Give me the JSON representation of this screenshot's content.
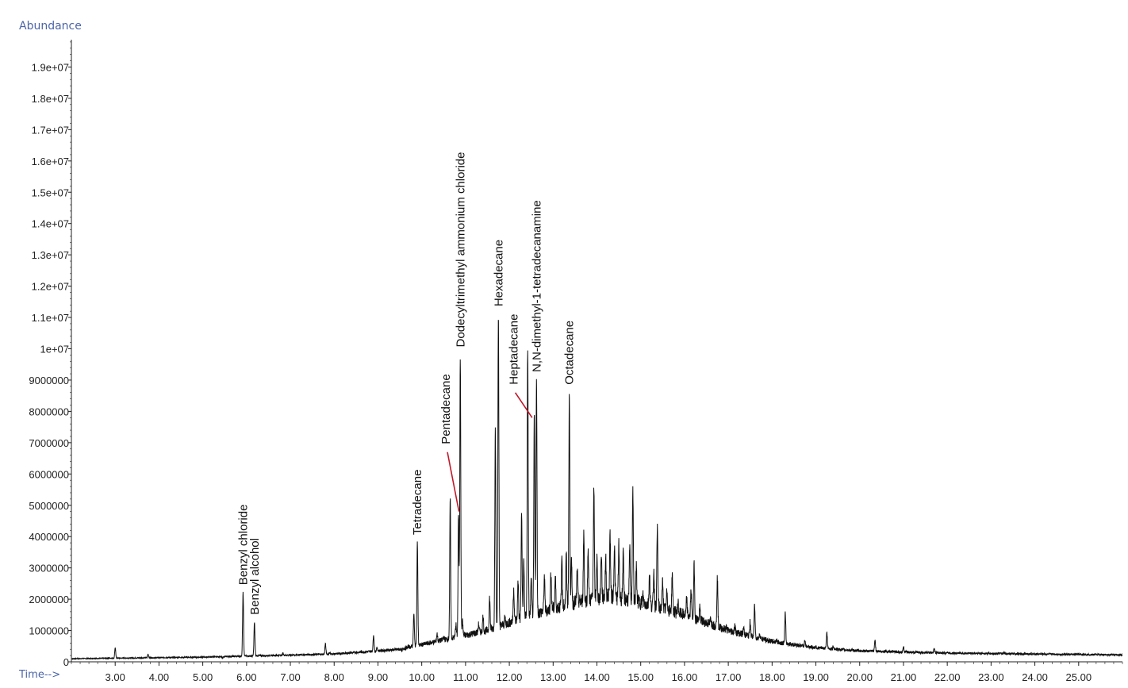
{
  "chart_data": {
    "type": "line",
    "ylabel": "Abundance",
    "xlabel": "Time-->",
    "xlim": [
      2.0,
      26.0
    ],
    "ylim": [
      0,
      20000000
    ],
    "x_ticks": [
      "3.00",
      "4.00",
      "5.00",
      "6.00",
      "7.00",
      "8.00",
      "9.00",
      "10.00",
      "11.00",
      "12.00",
      "13.00",
      "14.00",
      "15.00",
      "16.00",
      "17.00",
      "18.00",
      "19.00",
      "20.00",
      "21.00",
      "22.00",
      "23.00",
      "24.00",
      "25.00"
    ],
    "y_ticks": [
      {
        "value": 0,
        "label": "0"
      },
      {
        "value": 1000000,
        "label": "1000000"
      },
      {
        "value": 2000000,
        "label": "2000000"
      },
      {
        "value": 3000000,
        "label": "3000000"
      },
      {
        "value": 4000000,
        "label": "4000000"
      },
      {
        "value": 5000000,
        "label": "5000000"
      },
      {
        "value": 6000000,
        "label": "6000000"
      },
      {
        "value": 7000000,
        "label": "7000000"
      },
      {
        "value": 8000000,
        "label": "8000000"
      },
      {
        "value": 9000000,
        "label": "9000000"
      },
      {
        "value": 10000000,
        "label": "1e+07"
      },
      {
        "value": 11000000,
        "label": "1.1e+07"
      },
      {
        "value": 12000000,
        "label": "1.2e+07"
      },
      {
        "value": 13000000,
        "label": "1.3e+07"
      },
      {
        "value": 14000000,
        "label": "1.4e+07"
      },
      {
        "value": 15000000,
        "label": "1.5e+07"
      },
      {
        "value": 16000000,
        "label": "1.6e+07"
      },
      {
        "value": 17000000,
        "label": "1.7e+07"
      },
      {
        "value": 18000000,
        "label": "1.8e+07"
      },
      {
        "value": 19000000,
        "label": "1.9e+07"
      }
    ],
    "series": [
      {
        "baseline": [
          [
            2.0,
            100000
          ],
          [
            5.0,
            150000
          ],
          [
            8.0,
            250000
          ],
          [
            9.5,
            400000
          ],
          [
            10.5,
            700000
          ],
          [
            11.5,
            1000000
          ],
          [
            12.5,
            1500000
          ],
          [
            13.5,
            1900000
          ],
          [
            14.3,
            2100000
          ],
          [
            15.0,
            1900000
          ],
          [
            16.0,
            1500000
          ],
          [
            17.0,
            1000000
          ],
          [
            18.0,
            650000
          ],
          [
            19.0,
            450000
          ],
          [
            20.0,
            350000
          ],
          [
            22.0,
            280000
          ],
          [
            24.0,
            250000
          ],
          [
            26.0,
            220000
          ]
        ],
        "peaks": [
          [
            3.0,
            450000
          ],
          [
            3.75,
            250000
          ],
          [
            5.45,
            120000
          ],
          [
            5.92,
            2250000
          ],
          [
            6.18,
            1250000
          ],
          [
            6.83,
            280000
          ],
          [
            7.8,
            580000
          ],
          [
            7.9,
            300000
          ],
          [
            8.9,
            850000
          ],
          [
            8.98,
            450000
          ],
          [
            9.55,
            350000
          ],
          [
            9.7,
            500000
          ],
          [
            9.82,
            1550000
          ],
          [
            9.9,
            3800000
          ],
          [
            10.35,
            900000
          ],
          [
            10.5,
            800000
          ],
          [
            10.65,
            5200000
          ],
          [
            10.78,
            1200000
          ],
          [
            10.84,
            4700000
          ],
          [
            10.88,
            9750000
          ],
          [
            10.93,
            1300000
          ],
          [
            11.3,
            1200000
          ],
          [
            11.4,
            1450000
          ],
          [
            11.55,
            2050000
          ],
          [
            11.68,
            7600000
          ],
          [
            11.75,
            11100000
          ],
          [
            11.9,
            1400000
          ],
          [
            12.1,
            2350000
          ],
          [
            12.2,
            2600000
          ],
          [
            12.28,
            4700000
          ],
          [
            12.33,
            3200000
          ],
          [
            12.42,
            9950000
          ],
          [
            12.5,
            2600000
          ],
          [
            12.57,
            7900000
          ],
          [
            12.62,
            9000000
          ],
          [
            12.8,
            2700000
          ],
          [
            12.95,
            2900000
          ],
          [
            13.05,
            2700000
          ],
          [
            13.2,
            3350000
          ],
          [
            13.3,
            3400000
          ],
          [
            13.37,
            8600000
          ],
          [
            13.42,
            3200000
          ],
          [
            13.55,
            2900000
          ],
          [
            13.7,
            4100000
          ],
          [
            13.8,
            3600000
          ],
          [
            13.93,
            5600000
          ],
          [
            14.0,
            3300000
          ],
          [
            14.1,
            3500000
          ],
          [
            14.2,
            3300000
          ],
          [
            14.3,
            4100000
          ],
          [
            14.4,
            3700000
          ],
          [
            14.5,
            3700000
          ],
          [
            14.6,
            3400000
          ],
          [
            14.75,
            3600000
          ],
          [
            14.82,
            5500000
          ],
          [
            14.9,
            3000000
          ],
          [
            15.05,
            2100000
          ],
          [
            15.2,
            2800000
          ],
          [
            15.3,
            2900000
          ],
          [
            15.38,
            4300000
          ],
          [
            15.5,
            2600000
          ],
          [
            15.6,
            2300000
          ],
          [
            15.72,
            2800000
          ],
          [
            15.85,
            1900000
          ],
          [
            16.05,
            2000000
          ],
          [
            16.15,
            2300000
          ],
          [
            16.22,
            3100000
          ],
          [
            16.35,
            1700000
          ],
          [
            16.6,
            1400000
          ],
          [
            16.75,
            2700000
          ],
          [
            16.95,
            1100000
          ],
          [
            17.15,
            1150000
          ],
          [
            17.35,
            1100000
          ],
          [
            17.5,
            1300000
          ],
          [
            17.6,
            1800000
          ],
          [
            17.72,
            900000
          ],
          [
            18.1,
            700000
          ],
          [
            18.3,
            1550000
          ],
          [
            18.75,
            700000
          ],
          [
            19.0,
            500000
          ],
          [
            19.25,
            950000
          ],
          [
            19.4,
            500000
          ],
          [
            20.05,
            350000
          ],
          [
            20.35,
            700000
          ],
          [
            20.6,
            350000
          ],
          [
            21.0,
            480000
          ],
          [
            21.3,
            300000
          ],
          [
            21.7,
            420000
          ],
          [
            22.0,
            320000
          ],
          [
            23.3,
            300000
          ],
          [
            24.2,
            250000
          ],
          [
            25.4,
            240000
          ]
        ]
      }
    ],
    "annotations": [
      {
        "label": "Benzyl chloride",
        "x": 5.92,
        "y": 2300000,
        "pointer": false
      },
      {
        "label": "Benzyl alcohol",
        "x": 6.18,
        "y": 1350000,
        "pointer": false
      },
      {
        "label": "Tetradecane",
        "x": 9.9,
        "y": 3900000,
        "pointer": false
      },
      {
        "label": "Pentadecane",
        "x": 10.55,
        "y": 6800000,
        "pointer": true,
        "target_x": 10.85,
        "target_y": 4800000
      },
      {
        "label": "Dodecyltrimethyl ammonium chloride",
        "x": 10.88,
        "y": 9900000,
        "pointer": false
      },
      {
        "label": "Hexadecane",
        "x": 11.75,
        "y": 11200000,
        "pointer": false
      },
      {
        "label": "Heptadecane",
        "x": 12.1,
        "y": 8700000,
        "pointer": true,
        "target_x": 12.52,
        "target_y": 7800000
      },
      {
        "label": "N,N-dimethyl-1-tetradecanamine",
        "x": 12.62,
        "y": 9100000,
        "pointer": false
      },
      {
        "label": "Octadecane",
        "x": 13.37,
        "y": 8700000,
        "pointer": false
      }
    ]
  }
}
